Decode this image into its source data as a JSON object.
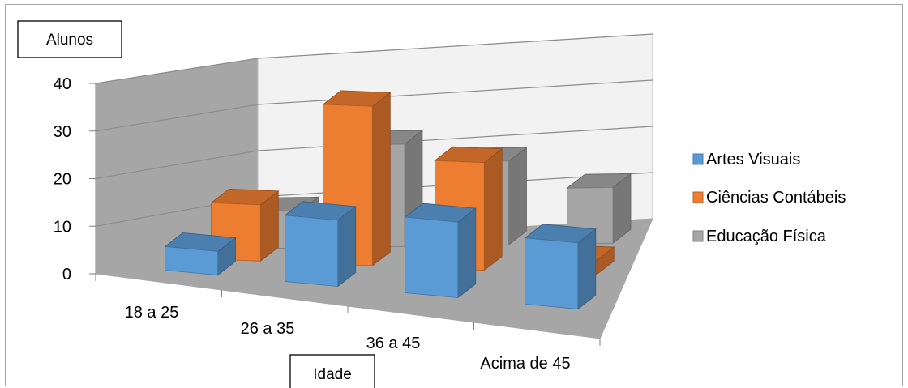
{
  "chart_data": {
    "type": "bar",
    "subtype": "3d-column",
    "categories": [
      "18 a 25",
      "26 a 35",
      "36 a 45",
      "Acima de 45"
    ],
    "series": [
      {
        "name": "Artes Visuais",
        "values": [
          5,
          14,
          16,
          14
        ]
      },
      {
        "name": "Ciências Contábeis",
        "values": [
          12,
          34,
          23,
          3
        ]
      },
      {
        "name": "Educação Física",
        "values": [
          8,
          22,
          18,
          12
        ]
      }
    ],
    "xlabel": "Idade",
    "ylabel": "Alunos",
    "ylim": [
      0,
      40
    ],
    "yticks": [
      0,
      10,
      20,
      30,
      40
    ],
    "grid": true,
    "legend_position": "right",
    "colors": [
      "#5B9BD5",
      "#ED7D31",
      "#A5A5A5"
    ]
  }
}
